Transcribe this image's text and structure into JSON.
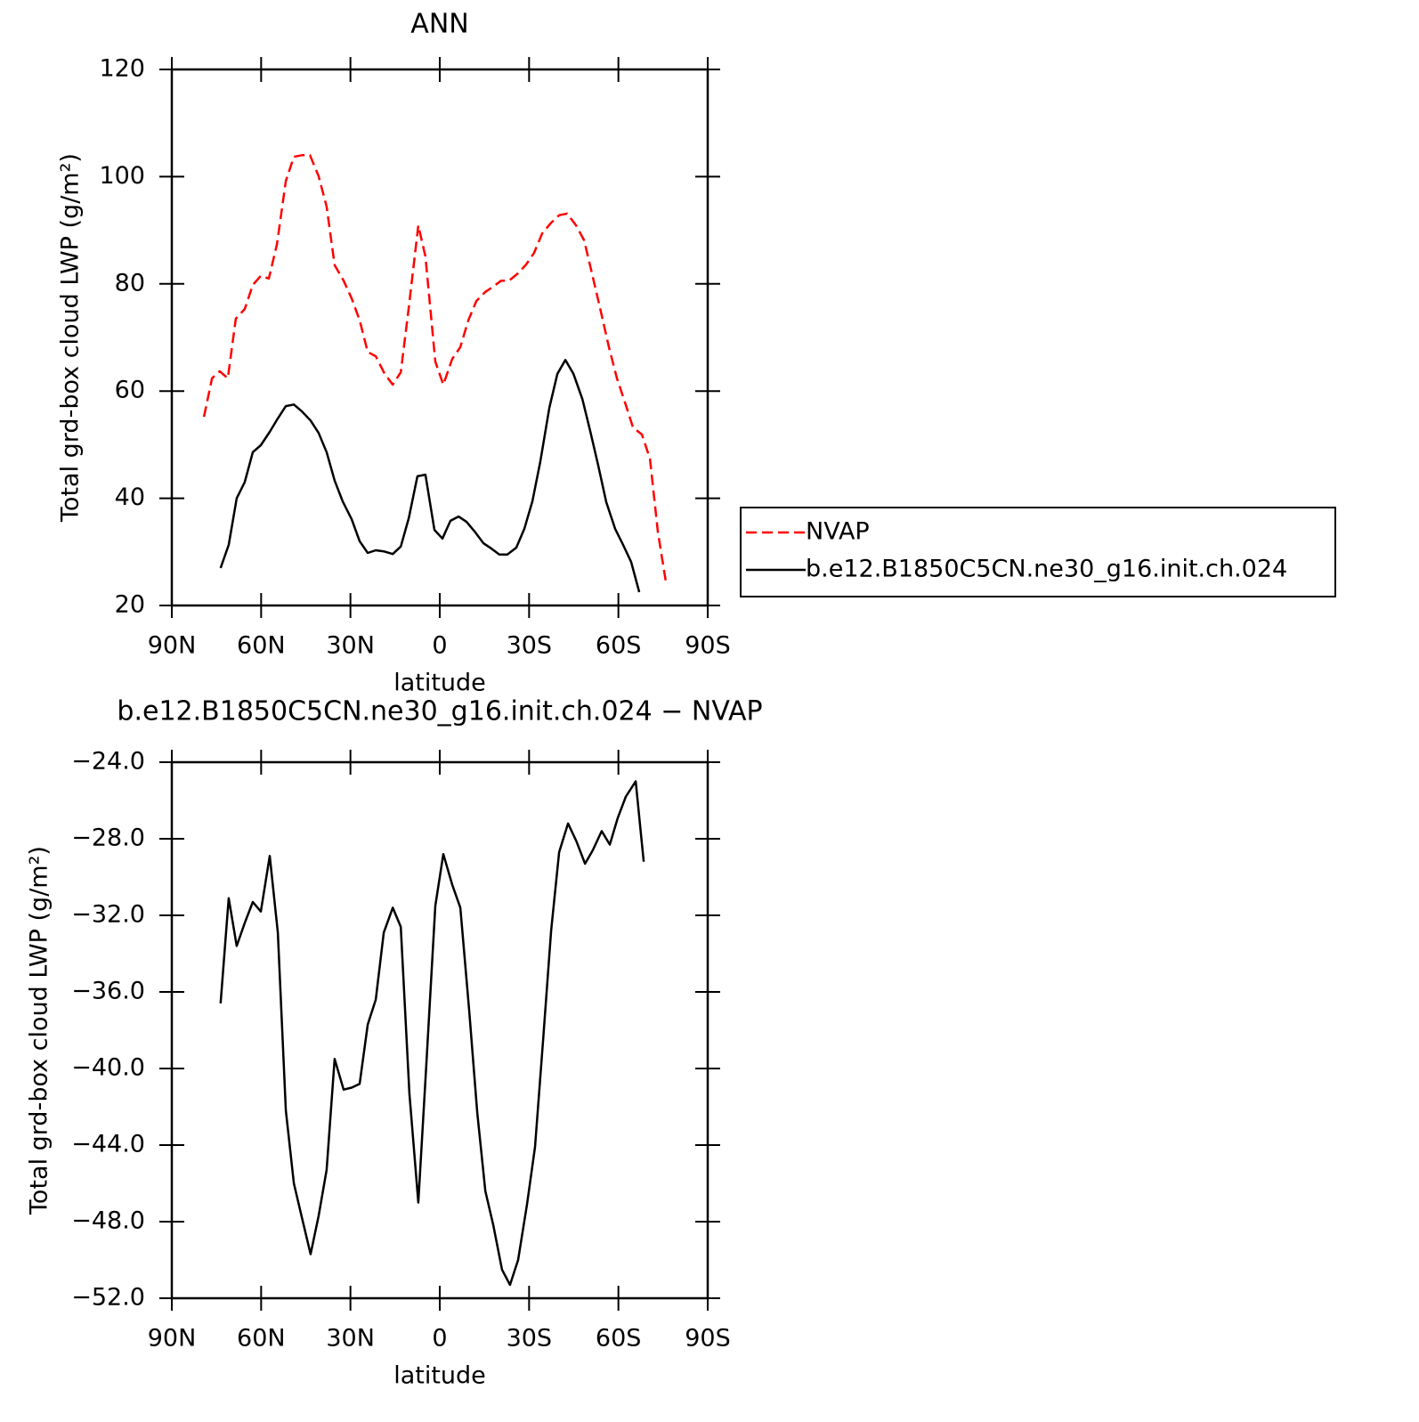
{
  "chart_data": [
    {
      "type": "line",
      "title": "ANN",
      "xlabel": "latitude",
      "ylabel": "Total grd-box cloud LWP (g/m²)",
      "xlim": [
        90,
        -90
      ],
      "xticks": [
        {
          "value": 90,
          "label": "90N"
        },
        {
          "value": 60,
          "label": "60N"
        },
        {
          "value": 30,
          "label": "30N"
        },
        0,
        {
          "value": -30,
          "label": "30S"
        },
        {
          "value": -60,
          "label": "60S"
        },
        {
          "value": -90,
          "label": "90S"
        }
      ],
      "ylim": [
        20,
        120
      ],
      "yticks": [
        20,
        40,
        60,
        80,
        100,
        120
      ],
      "legend": "right",
      "series": [
        {
          "name": "NVAP",
          "color": "#ff0000",
          "dash": true,
          "x": [
            79.2,
            76.5,
            73.9,
            71.2,
            68.5,
            65.5,
            62.8,
            60.1,
            57.4,
            54.7,
            51.7,
            49.0,
            46.3,
            43.6,
            40.7,
            38.0,
            35.3,
            32.3,
            29.6,
            26.9,
            24.2,
            21.5,
            18.5,
            15.8,
            13.1,
            10.4,
            7.2,
            4.8,
            1.5,
            -1.2,
            -4.2,
            -6.9,
            -9.6,
            -12.3,
            -15.3,
            -18.0,
            -20.6,
            -23.3,
            -26.3,
            -29.0,
            -31.7,
            -34.4,
            -37.4,
            -40.1,
            -42.8,
            -45.8,
            -48.5,
            -51.1,
            -53.8,
            -56.8,
            -59.5,
            -62.2,
            -64.9,
            -67.9,
            -70.6,
            -73.3,
            -76.0
          ],
          "values": [
            55.2,
            62.4,
            63.7,
            62.4,
            73.5,
            75.3,
            79.8,
            81.5,
            81.0,
            87.4,
            99.2,
            103.7,
            104.0,
            104.0,
            100.1,
            94.4,
            83.5,
            80.6,
            77.3,
            73.2,
            67.3,
            66.5,
            63.2,
            61.2,
            63.5,
            75.6,
            90.9,
            85.1,
            65.5,
            61.2,
            66.0,
            68.2,
            73.2,
            76.8,
            78.5,
            79.5,
            80.6,
            80.6,
            82.0,
            83.6,
            85.8,
            89.4,
            91.4,
            92.8,
            93.1,
            90.9,
            88.1,
            82.0,
            75.6,
            68.2,
            62.4,
            57.9,
            53.2,
            51.9,
            47.4,
            33.6,
            24.2
          ]
        },
        {
          "name": "b.e12.B1850C5CN.ne30_g16.init.ch.024",
          "color": "#000000",
          "dash": false,
          "x": [
            73.6,
            70.9,
            68.2,
            65.5,
            62.8,
            60.1,
            57.1,
            54.4,
            51.7,
            49.0,
            46.3,
            43.4,
            40.7,
            38.0,
            35.3,
            32.6,
            29.6,
            26.9,
            24.2,
            21.5,
            18.8,
            15.8,
            13.1,
            10.4,
            7.5,
            4.8,
            1.8,
            -0.9,
            -3.6,
            -6.3,
            -9.0,
            -12.0,
            -14.7,
            -17.4,
            -20.0,
            -22.7,
            -25.7,
            -28.4,
            -31.1,
            -33.8,
            -36.8,
            -39.5,
            -42.2,
            -44.9,
            -47.9,
            -50.5,
            -53.2,
            -55.9,
            -58.9,
            -61.6,
            -64.3,
            -67.0
          ],
          "values": [
            27.0,
            31.3,
            40.0,
            43.0,
            48.6,
            49.9,
            52.4,
            54.9,
            57.2,
            57.5,
            56.2,
            54.5,
            52.2,
            48.6,
            43.3,
            39.4,
            36.1,
            32.0,
            29.8,
            30.3,
            30.1,
            29.6,
            31.0,
            36.3,
            44.1,
            44.4,
            34.1,
            32.5,
            35.8,
            36.6,
            35.6,
            33.6,
            31.6,
            30.6,
            29.5,
            29.5,
            30.8,
            34.3,
            39.4,
            46.9,
            56.9,
            63.2,
            65.8,
            63.2,
            58.5,
            52.6,
            46.2,
            39.3,
            34.3,
            31.3,
            28.1,
            22.5
          ]
        }
      ]
    },
    {
      "type": "line",
      "title": "b.e12.B1850C5CN.ne30_g16.init.ch.024 − NVAP",
      "xlabel": "latitude",
      "ylabel": "Total grd-box cloud LWP (g/m²)",
      "xlim": [
        90,
        -90
      ],
      "xticks": [
        {
          "value": 90,
          "label": "90N"
        },
        {
          "value": 60,
          "label": "60N"
        },
        {
          "value": 30,
          "label": "30N"
        },
        0,
        {
          "value": -30,
          "label": "30S"
        },
        {
          "value": -60,
          "label": "60S"
        },
        {
          "value": -90,
          "label": "90S"
        }
      ],
      "ylim": [
        -52,
        -24
      ],
      "yticks": [
        {
          "value": -52,
          "label": "−52.0"
        },
        {
          "value": -48,
          "label": "−48.0"
        },
        {
          "value": -44,
          "label": "−44.0"
        },
        {
          "value": -40,
          "label": "−40.0"
        },
        {
          "value": -36,
          "label": "−36.0"
        },
        {
          "value": -32,
          "label": "−32.0"
        },
        {
          "value": -28,
          "label": "−28.0"
        },
        {
          "value": -24,
          "label": "−24.0"
        }
      ],
      "series": [
        {
          "color": "#000000",
          "dash": false,
          "x": [
            73.6,
            70.9,
            68.2,
            65.5,
            62.8,
            60.1,
            57.1,
            54.4,
            51.7,
            49.0,
            46.3,
            43.4,
            40.7,
            38.0,
            35.3,
            32.3,
            29.6,
            26.9,
            24.2,
            21.5,
            18.8,
            15.8,
            13.1,
            10.2,
            7.2,
            4.5,
            1.5,
            -1.2,
            -4.2,
            -6.9,
            -9.9,
            -12.6,
            -15.3,
            -18.0,
            -20.9,
            -23.6,
            -26.3,
            -29.3,
            -32.0,
            -34.7,
            -37.4,
            -40.1,
            -43.1,
            -45.8,
            -48.8,
            -51.4,
            -54.4,
            -57.1,
            -59.8,
            -62.5,
            -65.8,
            -68.5
          ],
          "values": [
            -36.6,
            -31.1,
            -33.6,
            -32.4,
            -31.3,
            -31.8,
            -28.9,
            -32.9,
            -42.2,
            -46.0,
            -47.8,
            -49.7,
            -47.7,
            -45.3,
            -39.5,
            -41.1,
            -41.0,
            -40.8,
            -37.7,
            -36.4,
            -32.9,
            -31.6,
            -32.6,
            -41.3,
            -47.0,
            -39.8,
            -31.5,
            -28.8,
            -30.4,
            -31.6,
            -37.0,
            -42.3,
            -46.4,
            -48.2,
            -50.5,
            -51.3,
            -50.0,
            -47.1,
            -44.1,
            -38.5,
            -32.8,
            -28.7,
            -27.2,
            -28.1,
            -29.3,
            -28.6,
            -27.6,
            -28.3,
            -26.9,
            -25.8,
            -25.0,
            -29.2
          ]
        }
      ]
    }
  ]
}
